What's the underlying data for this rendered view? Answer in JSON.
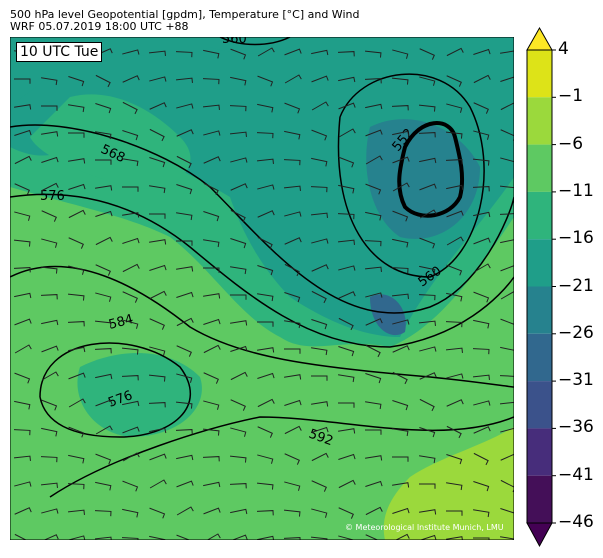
{
  "header": {
    "title": "500 hPa level Geopotential [gpdm], Temperature [°C] and Wind",
    "subtitle": "WRF 05.07.2019 18:00 UTC +88"
  },
  "map": {
    "timestamp_label": "10 UTC Tue",
    "credit": "© Meteorological Institute Munich, LMU",
    "contour_labels": [
      "560",
      "568",
      "576",
      "584",
      "576",
      "592",
      "552",
      "560"
    ]
  },
  "colorbar": {
    "ticks": [
      "4",
      "−1",
      "−6",
      "−11",
      "−16",
      "−21",
      "−26",
      "−31",
      "−36",
      "−41",
      "−46"
    ],
    "colors": [
      "#fde725",
      "#dde318",
      "#9bd93c",
      "#5ec962",
      "#2fb47c",
      "#1f9e89",
      "#26828e",
      "#31688e",
      "#3b528b",
      "#472d7b",
      "#440f58",
      "#440154"
    ]
  }
}
